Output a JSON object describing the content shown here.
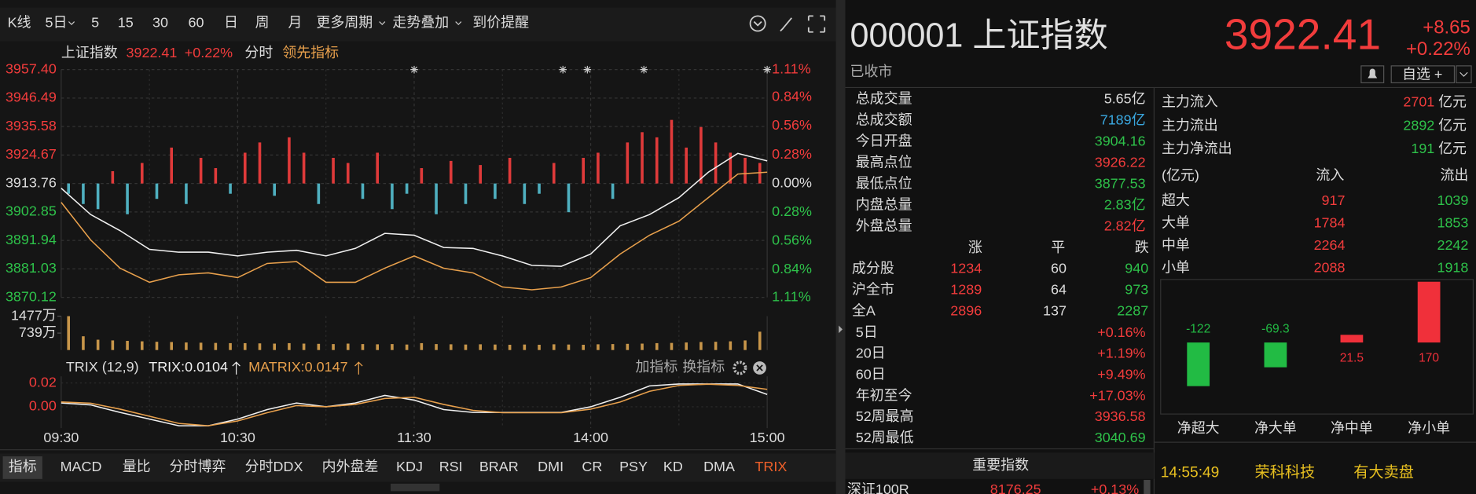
{
  "toolbar": {
    "items": [
      "K线",
      "5日",
      "5",
      "15",
      "30",
      "60",
      "日",
      "周",
      "月",
      "更多周期",
      "走势叠加",
      "到价提醒"
    ]
  },
  "chart_data": [
    {
      "type": "line",
      "price_label": "3922.41",
      "change_label": "+0.22%",
      "mode": "分时",
      "x": [
        0,
        10,
        20,
        30,
        40,
        50,
        60,
        70,
        80,
        90,
        100,
        110,
        120,
        130,
        140,
        150,
        160,
        170,
        180,
        190,
        200,
        210,
        220,
        230,
        240
      ],
      "xlim": [
        0,
        240
      ],
      "xticks": [
        {
          "value": 0,
          "label": "09:30"
        },
        {
          "value": 60,
          "label": "10:30"
        },
        {
          "value": 120,
          "label": "11:30"
        },
        {
          "value": 180,
          "label": "14:00"
        },
        {
          "value": 240,
          "label": "15:00"
        }
      ],
      "ylim": [
        3870.12,
        3957.4
      ],
      "yticks": [
        {
          "value": 3957.4,
          "label": "3957.40"
        },
        3946.49,
        3935.58,
        3924.67,
        3913.76,
        3902.85,
        3891.94,
        3881.03,
        3870.12
      ],
      "y2lim": [
        -1.11,
        1.11
      ],
      "y2ticks": [
        {
          "value": 1.11,
          "label": "1.11%"
        },
        {
          "value": 0.84,
          "label": "0.84%"
        },
        {
          "value": 0.56,
          "label": "0.56%"
        },
        {
          "value": 0.28,
          "label": "0.28%"
        },
        {
          "value": 0,
          "label": "0.00%"
        },
        {
          "value": -0.28,
          "label": "0.28%"
        },
        {
          "value": -0.56,
          "label": "0.56%"
        },
        {
          "value": -0.84,
          "label": "0.84%"
        },
        {
          "value": -1.11,
          "label": "1.11%"
        }
      ],
      "grid": true,
      "series": [
        {
          "name": "上证指数",
          "color": "#f0f0f0",
          "values": [
            3911.96,
            3901.87,
            3895.7,
            3888.52,
            3887.44,
            3887.44,
            3886.0,
            3887.44,
            3888.16,
            3886.0,
            3888.88,
            3894.65,
            3893.93,
            3889.24,
            3888.88,
            3886.0,
            3882.39,
            3882.03,
            3886.72,
            3897.54,
            3901.87,
            3908.36,
            3918.09,
            3925.31,
            3922.41
          ]
        },
        {
          "name": "领先指标",
          "color": "#e8a04c",
          "values": [
            3906.55,
            3892.13,
            3881.31,
            3875.9,
            3878.78,
            3879.51,
            3877.7,
            3883.11,
            3883.83,
            3875.9,
            3875.9,
            3881.31,
            3886.0,
            3881.31,
            3879.51,
            3874.1,
            3873.02,
            3874.1,
            3877.7,
            3886.72,
            3893.93,
            3899.34,
            3908.36,
            3917.37,
            3918.09
          ]
        },
        {
          "type": "bar",
          "axis": "y2",
          "color": "#e03a3a",
          "negative_color": "#4fb0c0",
          "x": [
            2.5,
            7.5,
            12.5,
            17.5,
            22.5,
            27.5,
            32.5,
            37.5,
            42.5,
            47.5,
            52.5,
            57.5,
            62.5,
            67.5,
            72.5,
            77.5,
            82.5,
            87.5,
            92.5,
            97.5,
            102.5,
            107.5,
            112.5,
            117.5,
            122.5,
            127.5,
            132.5,
            137.5,
            142.5,
            147.5,
            152.5,
            157.5,
            162.5,
            167.5,
            172.5,
            177.5,
            182.5,
            187.5,
            192.5,
            197.5,
            202.5,
            207.5,
            212.5,
            217.5,
            222.5,
            227.5,
            232.5,
            237.5
          ],
          "values": [
            -0.1,
            -0.2,
            -0.25,
            0.12,
            -0.3,
            0.2,
            -0.15,
            0.35,
            -0.2,
            0.25,
            0.15,
            -0.1,
            0.3,
            0.4,
            -0.12,
            0.45,
            0.3,
            -0.2,
            0.25,
            0.2,
            -0.15,
            0.3,
            -0.25,
            -0.1,
            0.15,
            -0.3,
            0.22,
            -0.2,
            0.18,
            -0.15,
            0.25,
            -0.2,
            -0.1,
            0.2,
            -0.28,
            0.25,
            0.3,
            -0.15,
            0.4,
            0.5,
            0.45,
            0.62,
            0.35,
            0.55,
            0.4,
            0.3,
            0.25,
            0.2
          ]
        }
      ]
    },
    {
      "type": "bar",
      "color": "#c8964a",
      "xlim": [
        0,
        240
      ],
      "x": [
        2.5,
        7.5,
        12.5,
        17.5,
        22.5,
        27.5,
        32.5,
        37.5,
        42.5,
        47.5,
        52.5,
        57.5,
        62.5,
        67.5,
        72.5,
        77.5,
        82.5,
        87.5,
        92.5,
        97.5,
        102.5,
        107.5,
        112.5,
        117.5,
        122.5,
        127.5,
        132.5,
        137.5,
        142.5,
        147.5,
        152.5,
        157.5,
        162.5,
        167.5,
        172.5,
        177.5,
        182.5,
        187.5,
        192.5,
        197.5,
        202.5,
        207.5,
        212.5,
        217.5,
        222.5,
        227.5,
        232.5,
        237.5
      ],
      "values": [
        1477,
        600,
        450,
        420,
        400,
        380,
        360,
        350,
        330,
        320,
        310,
        300,
        300,
        290,
        280,
        300,
        280,
        270,
        260,
        280,
        260,
        250,
        260,
        240,
        300,
        260,
        250,
        240,
        250,
        240,
        230,
        240,
        230,
        250,
        240,
        230,
        250,
        260,
        270,
        280,
        300,
        310,
        330,
        350,
        360,
        380,
        420,
        800
      ],
      "ylim": [
        0,
        1477
      ],
      "yticks": [
        {
          "value": 1477,
          "label": "1477万"
        },
        {
          "value": 739,
          "label": "739万"
        }
      ]
    },
    {
      "type": "line",
      "title": "TRIX (12,9)",
      "x": [
        0,
        10,
        20,
        30,
        40,
        50,
        60,
        70,
        80,
        90,
        100,
        110,
        120,
        130,
        140,
        150,
        160,
        170,
        180,
        190,
        200,
        210,
        220,
        230,
        240
      ],
      "xlim": [
        0,
        240
      ],
      "ylim": [
        -0.018,
        0.0256
      ],
      "yticks": [
        0.02,
        {
          "value": 0,
          "label": "0.00"
        }
      ],
      "series": [
        {
          "name": "TRIX:0.0104",
          "color": "#f0f0f0",
          "values": [
            0.0032,
            0.0016,
            -0.0048,
            -0.0104,
            -0.016,
            -0.016,
            -0.0104,
            -0.0024,
            0.0032,
            0,
            0.0032,
            0.0096,
            0.0056,
            -0.0024,
            -0.0048,
            -0.0048,
            -0.0048,
            -0.0048,
            0,
            0.008,
            0.0176,
            0.0192,
            0.0192,
            0.0192,
            0.0104
          ]
        },
        {
          "name": "MATRIX:0.0147",
          "color": "#e8a04c",
          "values": [
            0.004,
            0.003,
            -0.002,
            -0.008,
            -0.014,
            -0.016,
            -0.012,
            -0.005,
            0.001,
            0,
            0.002,
            0.007,
            0.008,
            0.002,
            -0.003,
            -0.005,
            -0.005,
            -0.005,
            -0.002,
            0.004,
            0.013,
            0.018,
            0.019,
            0.018,
            0.0147
          ]
        }
      ]
    },
    {
      "type": "bar",
      "categories": [
        "净超大",
        "净大单",
        "净中单",
        "净小单"
      ],
      "values": [
        -122,
        -69.3,
        21.5,
        170
      ],
      "color": "#f0303a",
      "negative_color": "#22bb44"
    }
  ],
  "indicator_actions": [
    "加指标",
    "换指标"
  ],
  "tabs": {
    "items": [
      "指标",
      "MACD",
      "量比",
      "分时博弈",
      "分时DDX",
      "内外盘差",
      "KDJ",
      "RSI",
      "BRAR",
      "DMI",
      "CR",
      "PSY",
      "KD",
      "DMA",
      "TRIX"
    ]
  },
  "quote": {
    "code_name": "000001 上证指数",
    "price": "3922.41",
    "change": "+8.65",
    "change_pct": "+0.22%",
    "status": "已收市",
    "watch": "自选 +"
  },
  "stats": [
    {
      "label": "总成交量",
      "value": "5.65亿",
      "color": "#dcdcdc"
    },
    {
      "label": "总成交额",
      "value": "7189亿",
      "color": "#3aa8e0"
    },
    {
      "label": "今日开盘",
      "value": "3904.16",
      "color": "#2ec24a"
    },
    {
      "label": "最高点位",
      "value": "3926.22",
      "color": "#f23c3c"
    },
    {
      "label": "最低点位",
      "value": "3877.53",
      "color": "#2ec24a"
    },
    {
      "label": "内盘总量",
      "value": "2.83亿",
      "color": "#2ec24a"
    },
    {
      "label": "外盘总量",
      "value": "2.82亿",
      "color": "#f23c3c"
    }
  ],
  "breadth": {
    "headers": [
      "涨",
      "平",
      "跌"
    ],
    "rows": [
      {
        "label": "成分股",
        "values": [
          1234,
          60,
          940
        ]
      },
      {
        "label": "沪全市",
        "values": [
          1289,
          64,
          973
        ]
      },
      {
        "label": "全A",
        "values": [
          2896,
          137,
          2287
        ]
      }
    ]
  },
  "performance": [
    {
      "label": "5日",
      "value": "+0.16%",
      "color": "#f23c3c"
    },
    {
      "label": "20日",
      "value": "+1.19%",
      "color": "#f23c3c"
    },
    {
      "label": "60日",
      "value": "+9.49%",
      "color": "#f23c3c"
    },
    {
      "label": "年初至今",
      "value": "+17.03%",
      "color": "#f23c3c"
    },
    {
      "label": "52周最高",
      "value": "3936.58",
      "color": "#f23c3c"
    },
    {
      "label": "52周最低",
      "value": "3040.69",
      "color": "#2ec24a"
    }
  ],
  "index_panel": {
    "title": "重要指数",
    "rows": [
      {
        "name": "深证100R",
        "value": "8176.25",
        "change": "+0.13%"
      }
    ]
  },
  "flow": {
    "main": [
      {
        "label": "主力流入",
        "value": 2701,
        "unit": "亿元",
        "color": "#f23c3c"
      },
      {
        "label": "主力流出",
        "value": 2892,
        "unit": "亿元",
        "color": "#2ec24a"
      },
      {
        "label": "主力净流出",
        "value": 191,
        "unit": "亿元",
        "color": "#2ec24a"
      }
    ],
    "table": {
      "unit": "(亿元)",
      "headers": [
        "流入",
        "流出"
      ],
      "rows": [
        {
          "label": "超大",
          "values": [
            917,
            1039
          ]
        },
        {
          "label": "大单",
          "values": [
            1784,
            1853
          ]
        },
        {
          "label": "中单",
          "values": [
            2264,
            2242
          ]
        },
        {
          "label": "小单",
          "values": [
            2088,
            1918
          ]
        }
      ]
    }
  },
  "ticker": [
    {
      "time": "14:55:49",
      "name": "荣科科技",
      "event": "有大卖盘"
    }
  ]
}
